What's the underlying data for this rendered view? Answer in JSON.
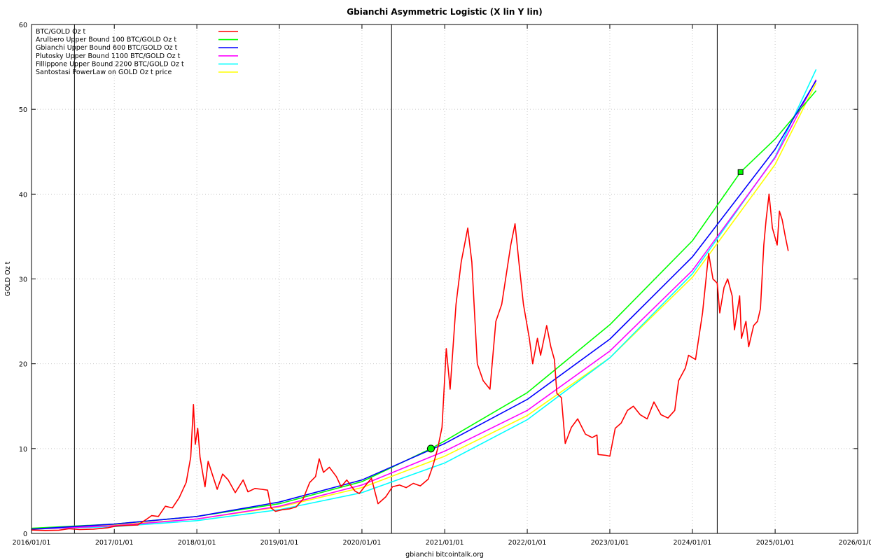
{
  "chart_data": {
    "type": "line",
    "title": "Gbianchi Asymmetric Logistic (X lin Y lin)",
    "xlabel": "gbianchi bitcointalk.org",
    "ylabel": "GOLD Oz t",
    "xlim": [
      "2016-01-01",
      "2026-01-01"
    ],
    "ylim": [
      0,
      60
    ],
    "grid": true,
    "legend_position": "top-left",
    "x_tick_labels": [
      "2016/01/01",
      "2017/01/01",
      "2018/01/01",
      "2019/01/01",
      "2020/01/01",
      "2021/01/01",
      "2022/01/01",
      "2023/01/01",
      "2024/01/01",
      "2025/01/01",
      "2026/01/01"
    ],
    "y_ticks": [
      0,
      10,
      20,
      30,
      40,
      50,
      60
    ],
    "vertical_lines": [
      "2016-07-09",
      "2020-05-11",
      "2024-04-20"
    ],
    "series": [
      {
        "name": "BTC/GOLD Oz t",
        "color": "#ff0000",
        "points": [
          [
            "2016-01-01",
            0.4
          ],
          [
            "2016-03-01",
            0.35
          ],
          [
            "2016-05-01",
            0.38
          ],
          [
            "2016-06-15",
            0.55
          ],
          [
            "2016-08-01",
            0.45
          ],
          [
            "2016-10-01",
            0.5
          ],
          [
            "2016-12-01",
            0.65
          ],
          [
            "2017-01-05",
            0.85
          ],
          [
            "2017-03-01",
            0.95
          ],
          [
            "2017-04-15",
            1.0
          ],
          [
            "2017-05-20",
            1.6
          ],
          [
            "2017-06-15",
            2.1
          ],
          [
            "2017-07-15",
            2.0
          ],
          [
            "2017-08-15",
            3.2
          ],
          [
            "2017-09-15",
            3.0
          ],
          [
            "2017-10-15",
            4.2
          ],
          [
            "2017-11-15",
            6.0
          ],
          [
            "2017-12-05",
            9.0
          ],
          [
            "2017-12-17",
            15.2
          ],
          [
            "2017-12-25",
            10.5
          ],
          [
            "2018-01-05",
            12.4
          ],
          [
            "2018-01-15",
            9.0
          ],
          [
            "2018-02-06",
            5.5
          ],
          [
            "2018-02-20",
            8.5
          ],
          [
            "2018-03-10",
            7.0
          ],
          [
            "2018-04-01",
            5.2
          ],
          [
            "2018-04-25",
            7.0
          ],
          [
            "2018-05-20",
            6.3
          ],
          [
            "2018-06-20",
            4.8
          ],
          [
            "2018-07-25",
            6.3
          ],
          [
            "2018-08-15",
            4.9
          ],
          [
            "2018-09-15",
            5.3
          ],
          [
            "2018-10-15",
            5.2
          ],
          [
            "2018-11-10",
            5.1
          ],
          [
            "2018-11-25",
            3.0
          ],
          [
            "2018-12-15",
            2.6
          ],
          [
            "2019-01-15",
            2.8
          ],
          [
            "2019-02-15",
            2.9
          ],
          [
            "2019-03-15",
            3.1
          ],
          [
            "2019-04-15",
            4.0
          ],
          [
            "2019-05-15",
            6.0
          ],
          [
            "2019-06-10",
            6.7
          ],
          [
            "2019-06-26",
            8.8
          ],
          [
            "2019-07-15",
            7.2
          ],
          [
            "2019-08-10",
            7.8
          ],
          [
            "2019-09-10",
            6.7
          ],
          [
            "2019-10-01",
            5.5
          ],
          [
            "2019-10-26",
            6.3
          ],
          [
            "2019-12-01",
            5.0
          ],
          [
            "2019-12-20",
            4.7
          ],
          [
            "2020-01-15",
            5.6
          ],
          [
            "2020-02-12",
            6.5
          ],
          [
            "2020-03-12",
            3.5
          ],
          [
            "2020-04-15",
            4.3
          ],
          [
            "2020-05-15",
            5.5
          ],
          [
            "2020-06-15",
            5.7
          ],
          [
            "2020-07-15",
            5.4
          ],
          [
            "2020-08-15",
            5.9
          ],
          [
            "2020-09-15",
            5.6
          ],
          [
            "2020-10-20",
            6.4
          ],
          [
            "2020-11-10",
            8.0
          ],
          [
            "2020-12-01",
            10.0
          ],
          [
            "2020-12-20",
            12.5
          ],
          [
            "2021-01-08",
            21.8
          ],
          [
            "2021-01-25",
            17.0
          ],
          [
            "2021-02-20",
            27.0
          ],
          [
            "2021-03-15",
            32.0
          ],
          [
            "2021-04-13",
            36.0
          ],
          [
            "2021-05-01",
            32.0
          ],
          [
            "2021-05-15",
            25.0
          ],
          [
            "2021-05-25",
            20.0
          ],
          [
            "2021-06-20",
            18.0
          ],
          [
            "2021-07-20",
            17.0
          ],
          [
            "2021-08-15",
            25.0
          ],
          [
            "2021-09-10",
            27.0
          ],
          [
            "2021-10-20",
            34.0
          ],
          [
            "2021-11-08",
            36.5
          ],
          [
            "2021-11-25",
            32.0
          ],
          [
            "2021-12-15",
            27.0
          ],
          [
            "2022-01-10",
            23.0
          ],
          [
            "2022-01-25",
            20.0
          ],
          [
            "2022-02-15",
            23.0
          ],
          [
            "2022-03-01",
            21.0
          ],
          [
            "2022-03-28",
            24.5
          ],
          [
            "2022-04-15",
            22.0
          ],
          [
            "2022-05-01",
            20.5
          ],
          [
            "2022-05-12",
            16.5
          ],
          [
            "2022-06-01",
            16.0
          ],
          [
            "2022-06-18",
            10.6
          ],
          [
            "2022-07-15",
            12.5
          ],
          [
            "2022-08-12",
            13.5
          ],
          [
            "2022-09-15",
            11.7
          ],
          [
            "2022-10-15",
            11.3
          ],
          [
            "2022-11-05",
            11.6
          ],
          [
            "2022-11-10",
            9.3
          ],
          [
            "2022-12-15",
            9.2
          ],
          [
            "2023-01-01",
            9.1
          ],
          [
            "2023-01-25",
            12.4
          ],
          [
            "2023-02-20",
            13.0
          ],
          [
            "2023-03-20",
            14.5
          ],
          [
            "2023-04-15",
            15.0
          ],
          [
            "2023-05-15",
            14.0
          ],
          [
            "2023-06-15",
            13.5
          ],
          [
            "2023-07-15",
            15.5
          ],
          [
            "2023-08-15",
            14.0
          ],
          [
            "2023-09-15",
            13.6
          ],
          [
            "2023-10-15",
            14.5
          ],
          [
            "2023-11-01",
            18.0
          ],
          [
            "2023-12-01",
            19.5
          ],
          [
            "2023-12-15",
            21.0
          ],
          [
            "2024-01-15",
            20.5
          ],
          [
            "2024-02-15",
            26.0
          ],
          [
            "2024-03-13",
            33.0
          ],
          [
            "2024-04-01",
            30.0
          ],
          [
            "2024-04-20",
            29.5
          ],
          [
            "2024-05-01",
            26.0
          ],
          [
            "2024-05-20",
            29.0
          ],
          [
            "2024-06-05",
            30.0
          ],
          [
            "2024-06-25",
            28.0
          ],
          [
            "2024-07-05",
            24.0
          ],
          [
            "2024-07-28",
            28.0
          ],
          [
            "2024-08-05",
            23.0
          ],
          [
            "2024-08-25",
            25.0
          ],
          [
            "2024-09-06",
            22.0
          ],
          [
            "2024-09-28",
            24.5
          ],
          [
            "2024-10-15",
            25.0
          ],
          [
            "2024-10-28",
            26.5
          ],
          [
            "2024-11-12",
            34.0
          ],
          [
            "2024-11-22",
            37.0
          ],
          [
            "2024-12-05",
            40.0
          ],
          [
            "2024-12-20",
            36.0
          ],
          [
            "2025-01-10",
            34.0
          ],
          [
            "2025-01-20",
            38.0
          ],
          [
            "2025-02-01",
            37.0
          ],
          [
            "2025-02-15",
            35.0
          ],
          [
            "2025-02-28",
            33.3
          ]
        ]
      },
      {
        "name": "Arulbero Upper Bound 100  BTC/GOLD Oz t",
        "color": "#00ff00",
        "points": [
          [
            "2016-01-01",
            0.6
          ],
          [
            "2017-01-01",
            1.1
          ],
          [
            "2018-01-01",
            2.0
          ],
          [
            "2019-01-01",
            3.5
          ],
          [
            "2020-01-01",
            6.1
          ],
          [
            "2020-11-01",
            10.0
          ],
          [
            "2021-01-01",
            10.9
          ],
          [
            "2022-01-01",
            16.6
          ],
          [
            "2023-01-01",
            24.6
          ],
          [
            "2024-01-01",
            34.5
          ],
          [
            "2024-08-01",
            42.6
          ],
          [
            "2025-01-01",
            46.5
          ],
          [
            "2025-07-01",
            52.2
          ]
        ]
      },
      {
        "name": "Gbianchi Upper Bound 600  BTC/GOLD Oz t",
        "color": "#0000ff",
        "points": [
          [
            "2016-01-01",
            0.5
          ],
          [
            "2017-01-01",
            1.1
          ],
          [
            "2018-01-01",
            2.0
          ],
          [
            "2019-01-01",
            3.7
          ],
          [
            "2020-01-01",
            6.3
          ],
          [
            "2021-01-01",
            10.6
          ],
          [
            "2022-01-01",
            15.8
          ],
          [
            "2023-01-01",
            22.9
          ],
          [
            "2024-01-01",
            32.6
          ],
          [
            "2025-01-01",
            45.3
          ],
          [
            "2025-07-01",
            53.4
          ]
        ]
      },
      {
        "name": "Plutosky Upper Bound 1100  BTC/GOLD Oz t",
        "color": "#ff00ff",
        "points": [
          [
            "2016-01-01",
            0.5
          ],
          [
            "2017-01-01",
            0.9
          ],
          [
            "2018-01-01",
            1.7
          ],
          [
            "2019-01-01",
            3.2
          ],
          [
            "2020-01-01",
            5.7
          ],
          [
            "2021-01-01",
            9.7
          ],
          [
            "2022-01-01",
            14.5
          ],
          [
            "2023-01-01",
            21.5
          ],
          [
            "2024-01-01",
            31.0
          ],
          [
            "2025-01-01",
            44.3
          ],
          [
            "2025-07-01",
            53.5
          ]
        ]
      },
      {
        "name": "Fillippone Upper Bound 2200  BTC/GOLD Oz t",
        "color": "#00ffff",
        "points": [
          [
            "2016-01-01",
            0.5
          ],
          [
            "2017-01-01",
            0.8
          ],
          [
            "2018-01-01",
            1.5
          ],
          [
            "2019-01-01",
            2.8
          ],
          [
            "2020-01-01",
            4.8
          ],
          [
            "2021-01-01",
            8.3
          ],
          [
            "2022-01-01",
            13.4
          ],
          [
            "2023-01-01",
            20.7
          ],
          [
            "2024-01-01",
            30.6
          ],
          [
            "2025-01-01",
            44.4
          ],
          [
            "2025-07-01",
            54.7
          ]
        ]
      },
      {
        "name": "Santostasi PowerLaw on GOLD Oz t price",
        "color": "#ffff00",
        "points": [
          [
            "2016-01-01",
            0.6
          ],
          [
            "2017-01-01",
            1.0
          ],
          [
            "2018-01-01",
            1.7
          ],
          [
            "2019-01-01",
            3.1
          ],
          [
            "2020-01-01",
            5.4
          ],
          [
            "2021-01-01",
            9.1
          ],
          [
            "2022-01-01",
            13.9
          ],
          [
            "2023-01-01",
            20.7
          ],
          [
            "2024-01-01",
            30.2
          ],
          [
            "2025-01-01",
            43.5
          ],
          [
            "2025-07-01",
            53.1
          ]
        ]
      }
    ],
    "markers": [
      {
        "shape": "circle",
        "color": "#00ff00",
        "x": "2020-11-01",
        "y": 10.0
      },
      {
        "shape": "square",
        "color": "#00ff00",
        "x": "2024-08-01",
        "y": 42.6
      }
    ]
  }
}
